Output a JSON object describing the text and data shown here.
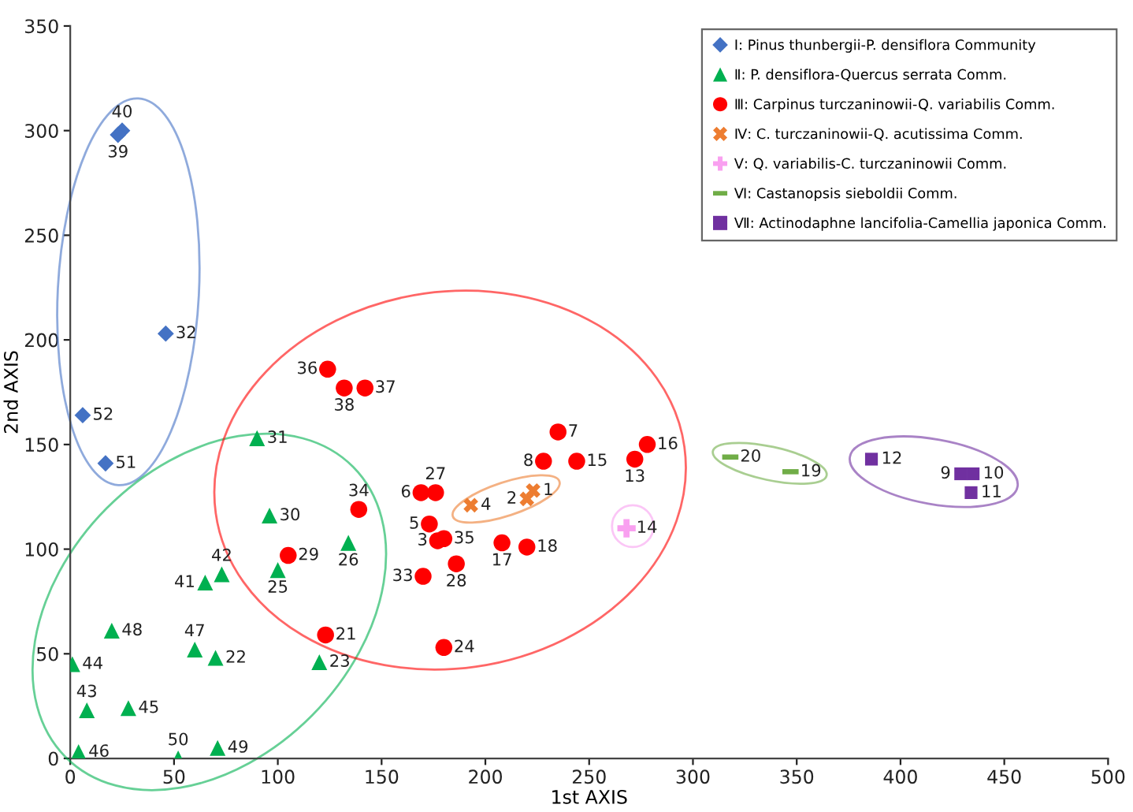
{
  "chart_data": {
    "type": "scatter",
    "xlabel": "1st AXIS",
    "ylabel": "2nd AXIS",
    "xlim": [
      0,
      500
    ],
    "ylim": [
      0,
      350
    ],
    "xticks": [
      0,
      50,
      100,
      150,
      200,
      250,
      300,
      350,
      400,
      450,
      500
    ],
    "yticks": [
      0,
      50,
      100,
      150,
      200,
      250,
      300,
      350
    ],
    "legend": "top right",
    "series": [
      {
        "name": "Ⅰ: Pinus thunbergii-P. densiflora Community",
        "color": "#4472c4",
        "marker": "diamond",
        "x": [
          25,
          23,
          46,
          6,
          17
        ],
        "values": [
          300,
          298,
          203,
          164,
          141
        ]
      },
      {
        "name": "Ⅱ: P. densiflora-Quercus serrata Comm.",
        "color": "#00b050",
        "marker": "triangle",
        "x": [
          90,
          96,
          73,
          65,
          100,
          134,
          20,
          60,
          70,
          1,
          120,
          8,
          28,
          4,
          52,
          71
        ],
        "values": [
          153,
          116,
          88,
          84,
          90,
          103,
          61,
          52,
          48,
          45,
          46,
          23,
          24,
          3,
          0,
          5
        ]
      },
      {
        "name": "Ⅲ: Carpinus turczaninowii-Q. variabilis Comm.",
        "color": "#ff0000",
        "marker": "circle",
        "x": [
          124,
          132,
          142,
          139,
          105,
          123,
          169,
          176,
          173,
          177,
          180,
          170,
          186,
          208,
          220,
          180,
          228,
          235,
          244,
          278,
          272
        ],
        "values": [
          186,
          177,
          177,
          119,
          97,
          59,
          127,
          127,
          112,
          104,
          105,
          87,
          93,
          103,
          101,
          53,
          142,
          156,
          142,
          150,
          143
        ]
      },
      {
        "name": "Ⅳ: C. turczaninowii-Q. acutissima Comm.",
        "color": "#ed7d31",
        "marker": "x",
        "x": [
          193,
          220,
          223
        ],
        "values": [
          121,
          124,
          128
        ]
      },
      {
        "name": "Ⅴ: Q. variabilis-C. turczaninowii Comm.",
        "color": "#f9a0f0",
        "marker": "cross",
        "x": [
          268
        ],
        "values": [
          110
        ]
      },
      {
        "name": "Ⅵ: Castanopsis sieboldii Comm.",
        "color": "#70ad47",
        "x": [
          318,
          347
        ],
        "values": [
          144,
          137
        ]
      },
      {
        "name": "Ⅶ: Actinodaphne lancifolia-Camellia japonica Comm.",
        "color": "#7030a0",
        "marker": "square",
        "x": [
          386,
          429,
          435,
          434
        ],
        "values": [
          143,
          136,
          136,
          127
        ]
      }
    ],
    "annotations": [
      {
        "text": "40",
        "x": 25,
        "y": 300
      },
      {
        "text": "39",
        "x": 23,
        "y": 298
      },
      {
        "text": "32",
        "x": 46,
        "y": 203
      },
      {
        "text": "52",
        "x": 6,
        "y": 164
      },
      {
        "text": "51",
        "x": 17,
        "y": 141
      },
      {
        "text": "31",
        "x": 90,
        "y": 153
      },
      {
        "text": "30",
        "x": 96,
        "y": 116
      },
      {
        "text": "42",
        "x": 73,
        "y": 88
      },
      {
        "text": "41",
        "x": 65,
        "y": 84
      },
      {
        "text": "25",
        "x": 100,
        "y": 90
      },
      {
        "text": "26",
        "x": 134,
        "y": 103
      },
      {
        "text": "48",
        "x": 20,
        "y": 61
      },
      {
        "text": "47",
        "x": 60,
        "y": 52
      },
      {
        "text": "22",
        "x": 70,
        "y": 48
      },
      {
        "text": "44",
        "x": 1,
        "y": 45
      },
      {
        "text": "23",
        "x": 120,
        "y": 46
      },
      {
        "text": "43",
        "x": 8,
        "y": 23
      },
      {
        "text": "45",
        "x": 28,
        "y": 24
      },
      {
        "text": "46",
        "x": 4,
        "y": 3
      },
      {
        "text": "50",
        "x": 52,
        "y": 0
      },
      {
        "text": "49",
        "x": 71,
        "y": 5
      },
      {
        "text": "36",
        "x": 124,
        "y": 186
      },
      {
        "text": "38",
        "x": 132,
        "y": 177
      },
      {
        "text": "37",
        "x": 142,
        "y": 177
      },
      {
        "text": "34",
        "x": 139,
        "y": 119
      },
      {
        "text": "29",
        "x": 105,
        "y": 97
      },
      {
        "text": "21",
        "x": 123,
        "y": 59
      },
      {
        "text": "6",
        "x": 169,
        "y": 127
      },
      {
        "text": "27",
        "x": 176,
        "y": 127
      },
      {
        "text": "5",
        "x": 173,
        "y": 112
      },
      {
        "text": "3",
        "x": 177,
        "y": 104
      },
      {
        "text": "35",
        "x": 180,
        "y": 105
      },
      {
        "text": "33",
        "x": 170,
        "y": 87
      },
      {
        "text": "28",
        "x": 186,
        "y": 93
      },
      {
        "text": "17",
        "x": 208,
        "y": 103
      },
      {
        "text": "18",
        "x": 220,
        "y": 101
      },
      {
        "text": "24",
        "x": 180,
        "y": 53
      },
      {
        "text": "8",
        "x": 228,
        "y": 142
      },
      {
        "text": "7",
        "x": 235,
        "y": 156
      },
      {
        "text": "15",
        "x": 244,
        "y": 142
      },
      {
        "text": "16",
        "x": 278,
        "y": 150
      },
      {
        "text": "13",
        "x": 272,
        "y": 143
      },
      {
        "text": "4",
        "x": 193,
        "y": 121
      },
      {
        "text": "2",
        "x": 220,
        "y": 124
      },
      {
        "text": "1",
        "x": 223,
        "y": 128
      },
      {
        "text": "14",
        "x": 268,
        "y": 110
      },
      {
        "text": "20",
        "x": 318,
        "y": 144
      },
      {
        "text": "19",
        "x": 347,
        "y": 137
      },
      {
        "text": "12",
        "x": 386,
        "y": 143
      },
      {
        "text": "9",
        "x": 429,
        "y": 136
      },
      {
        "text": "10",
        "x": 435,
        "y": 136
      },
      {
        "text": "11",
        "x": 434,
        "y": 127
      }
    ]
  }
}
